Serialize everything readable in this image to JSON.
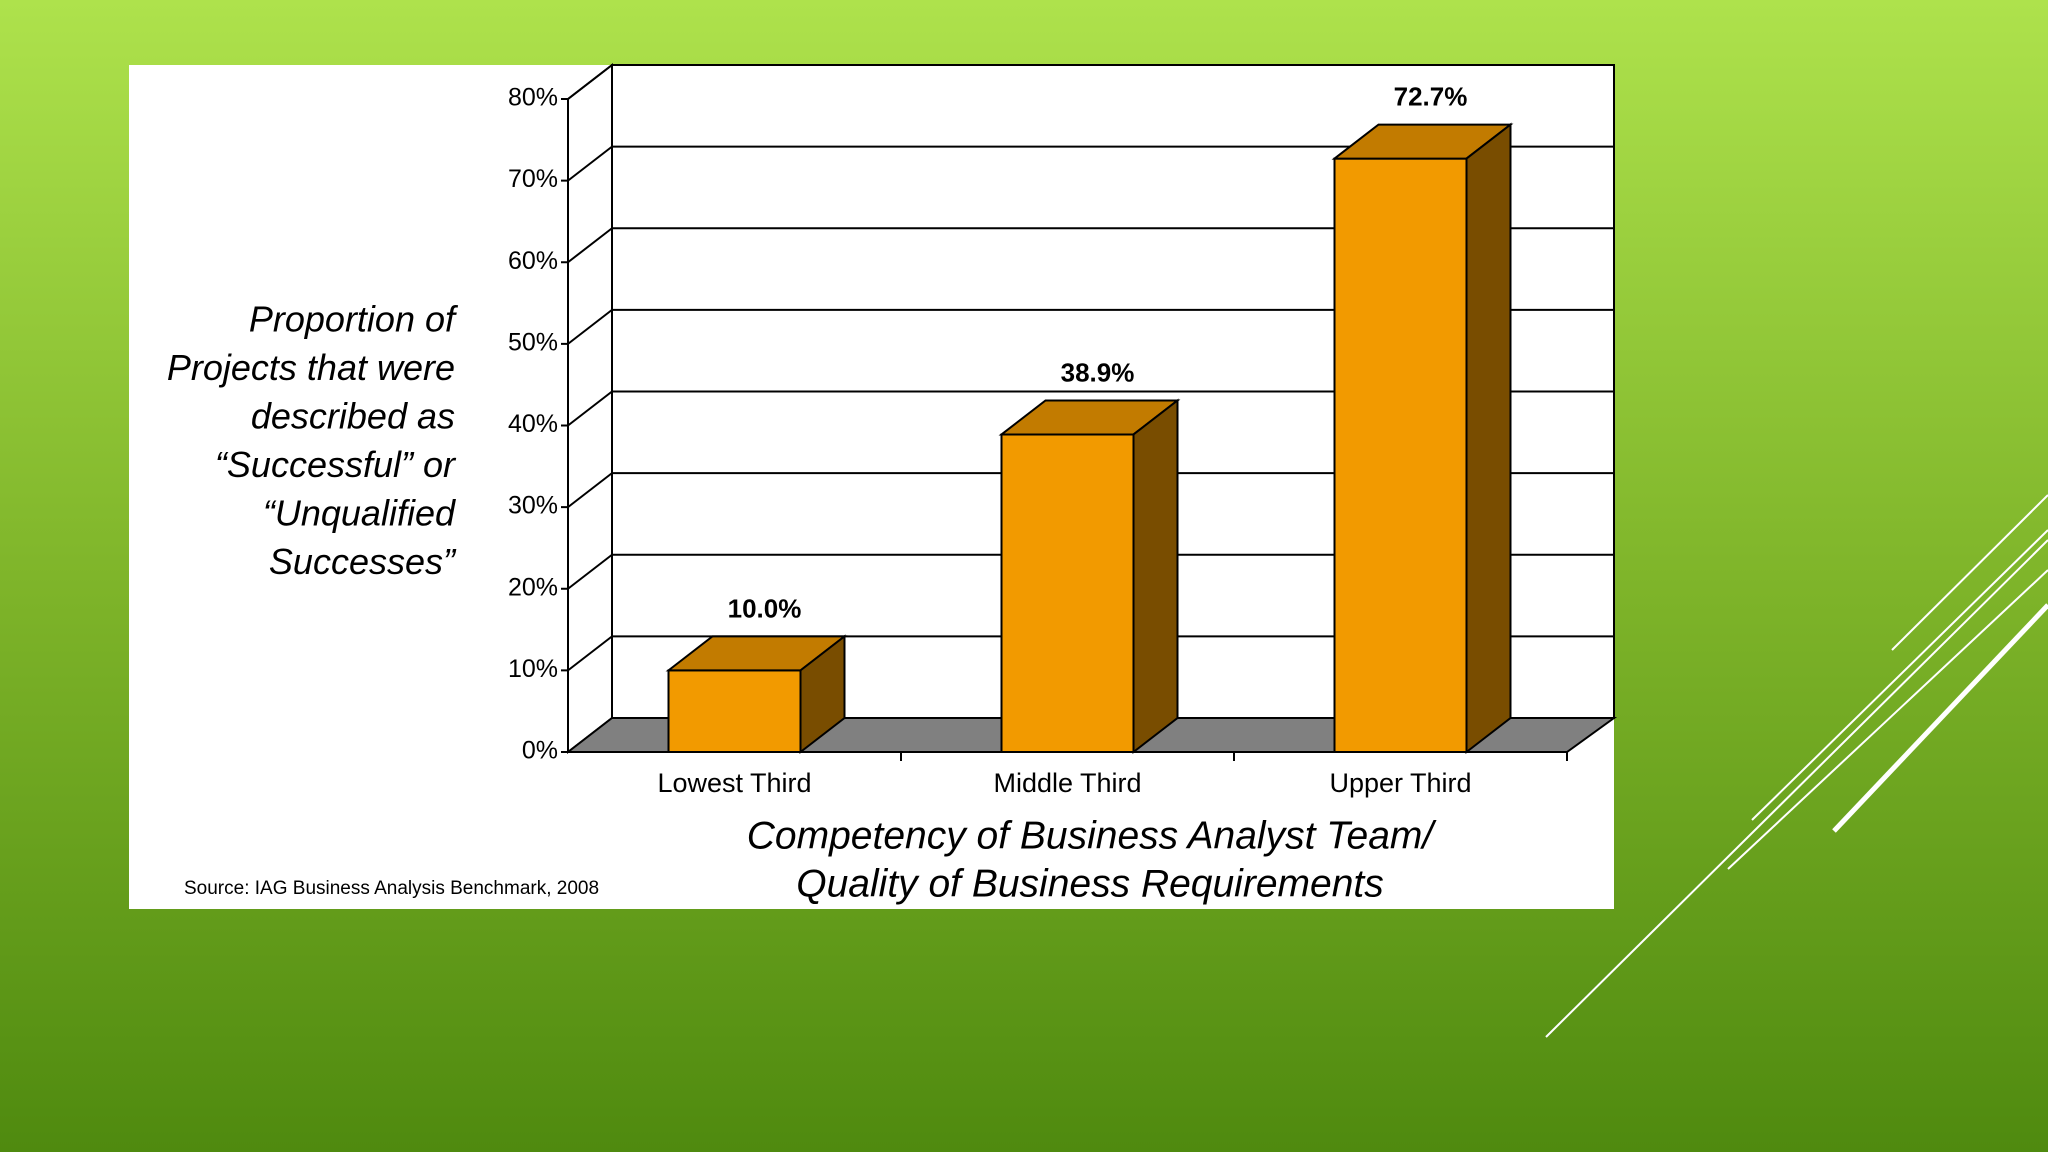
{
  "chart_data": {
    "type": "bar3d",
    "categories": [
      "Lowest Third",
      "Middle Third",
      "Upper Third"
    ],
    "values": [
      10.0,
      38.9,
      72.7
    ],
    "value_labels": [
      "10.0%",
      "38.9%",
      "72.7%"
    ],
    "color": "#f29a00",
    "ylim": [
      0,
      80
    ],
    "yticks": [
      {
        "value": 0,
        "label": "0%"
      },
      {
        "value": 10,
        "label": "10%"
      },
      {
        "value": 20,
        "label": "20%"
      },
      {
        "value": 30,
        "label": "30%"
      },
      {
        "value": 40,
        "label": "40%"
      },
      {
        "value": 50,
        "label": "50%"
      },
      {
        "value": 60,
        "label": "60%"
      },
      {
        "value": 70,
        "label": "70%"
      },
      {
        "value": 80,
        "label": "80%"
      }
    ],
    "grid": true,
    "ylabel": [
      "Proportion of",
      "Projects that were",
      "described as",
      "“Successful” or",
      "“Unqualified",
      "Successes”"
    ],
    "xlabel": [
      "Competency of Business Analyst Team/",
      "Quality of Business Requirements"
    ],
    "source": "Source:  IAG Business Analysis Benchmark, 2008"
  }
}
